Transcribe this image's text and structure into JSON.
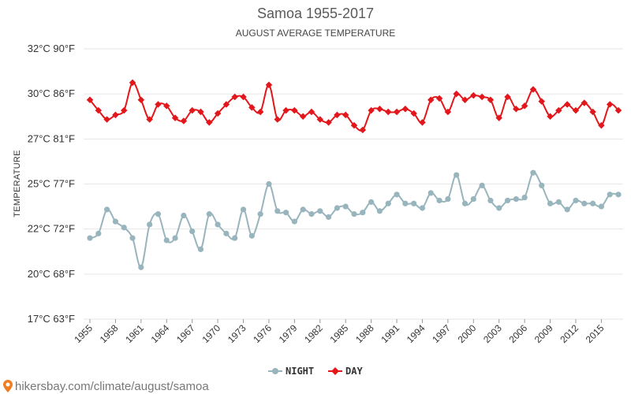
{
  "chart_data": {
    "type": "line",
    "title": "Samoa 1955-2017",
    "subtitle": "AUGUST AVERAGE TEMPERATURE",
    "ylabel": "TEMPERATURE",
    "xlabel": "",
    "ylim": [
      17,
      32
    ],
    "yticks": [
      {
        "value": 17,
        "label": "17°C 63°F"
      },
      {
        "value": 20,
        "label": "20°C 68°F"
      },
      {
        "value": 22,
        "label": "22°C 72°F"
      },
      {
        "value": 25,
        "label": "25°C 77°F"
      },
      {
        "value": 27,
        "label": "27°C 81°F"
      },
      {
        "value": 30,
        "label": "30°C 86°F"
      },
      {
        "value": 32,
        "label": "32°C 90°F"
      }
    ],
    "xticks": [
      "1955",
      "1958",
      "1961",
      "1964",
      "1967",
      "1970",
      "1973",
      "1976",
      "1979",
      "1982",
      "1985",
      "1988",
      "1991",
      "1994",
      "1997",
      "2000",
      "2003",
      "2006",
      "2009",
      "2012",
      "2015"
    ],
    "x": [
      1955,
      1956,
      1957,
      1958,
      1959,
      1960,
      1961,
      1962,
      1963,
      1964,
      1965,
      1966,
      1967,
      1968,
      1969,
      1970,
      1971,
      1972,
      1973,
      1974,
      1975,
      1976,
      1977,
      1978,
      1979,
      1980,
      1981,
      1982,
      1983,
      1984,
      1985,
      1986,
      1987,
      1988,
      1989,
      1990,
      1991,
      1992,
      1993,
      1994,
      1995,
      1996,
      1997,
      1998,
      1999,
      2000,
      2001,
      2002,
      2003,
      2004,
      2005,
      2006,
      2007,
      2008,
      2009,
      2010,
      2011,
      2012,
      2013,
      2014,
      2015,
      2016,
      2017
    ],
    "grid": true,
    "legend_position": "bottom-center",
    "series": [
      {
        "name": "NIGHT",
        "color": "#98b4bd",
        "values": [
          21.6,
          21.8,
          23.3,
          22.5,
          22.1,
          21.6,
          20.3,
          22.3,
          23.0,
          21.5,
          21.6,
          22.9,
          21.9,
          21.1,
          23.0,
          22.3,
          21.8,
          21.6,
          23.3,
          21.7,
          23.0,
          25.0,
          23.2,
          23.1,
          22.5,
          23.3,
          23.0,
          23.2,
          22.8,
          23.4,
          23.5,
          23.0,
          23.1,
          23.8,
          23.2,
          23.7,
          24.3,
          23.7,
          23.7,
          23.4,
          24.4,
          23.9,
          24.0,
          25.4,
          23.7,
          24.0,
          24.9,
          23.9,
          23.4,
          23.9,
          24.0,
          24.1,
          25.5,
          24.9,
          23.7,
          23.8,
          23.3,
          23.9,
          23.7,
          23.7,
          23.5,
          24.3,
          24.3
        ]
      },
      {
        "name": "DAY",
        "color": "#e3171b",
        "values": [
          29.6,
          28.9,
          28.3,
          28.6,
          28.9,
          30.5,
          29.6,
          28.3,
          29.3,
          29.2,
          28.4,
          28.2,
          28.9,
          28.8,
          28.1,
          28.7,
          29.3,
          29.8,
          29.8,
          29.1,
          28.8,
          30.4,
          28.3,
          28.9,
          28.9,
          28.5,
          28.8,
          28.3,
          28.1,
          28.6,
          28.6,
          27.9,
          27.6,
          28.9,
          29.0,
          28.8,
          28.8,
          29.0,
          28.7,
          28.1,
          29.6,
          29.7,
          28.8,
          30.0,
          29.6,
          29.9,
          29.8,
          29.6,
          28.4,
          29.8,
          29.0,
          29.2,
          30.2,
          29.5,
          28.5,
          28.9,
          29.3,
          28.9,
          29.4,
          28.8,
          27.9,
          29.3,
          28.9
        ]
      }
    ]
  },
  "watermark": "hikersbay.com/climate/august/samoa"
}
